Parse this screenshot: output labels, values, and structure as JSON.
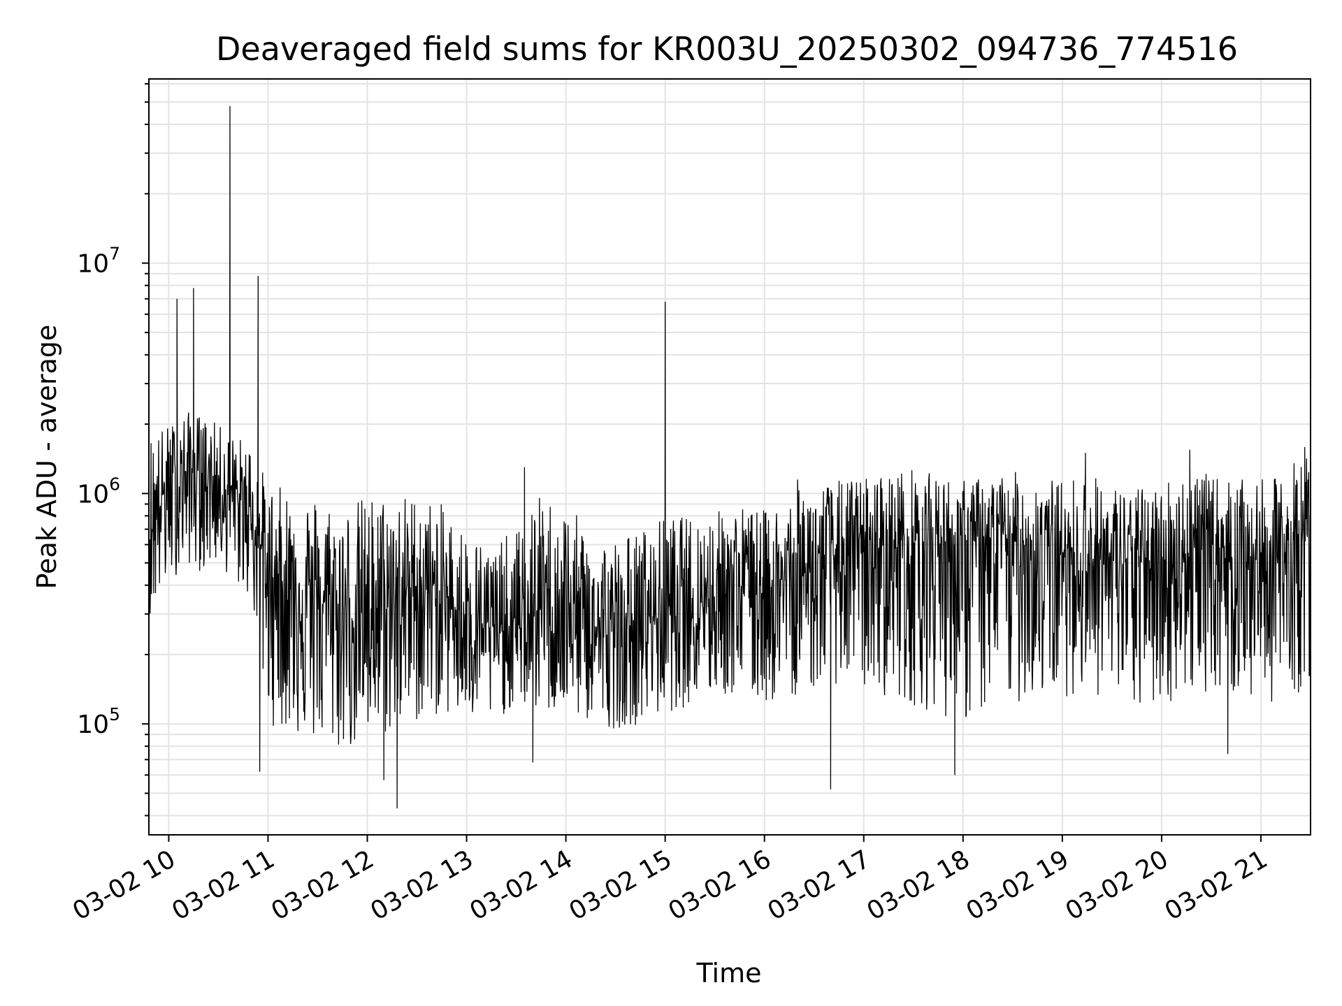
{
  "chart_data": {
    "type": "line",
    "title": "Deaveraged field sums for KR003U_20250302_094736_774516",
    "xlabel": "Time",
    "ylabel": "Peak ADU - average",
    "yscale": "log",
    "xlim": [
      "03-02 09:48",
      "03-02 21:30"
    ],
    "ylim": [
      33000,
      63000000
    ],
    "x_ticks": [
      "03-02 10",
      "03-02 11",
      "03-02 12",
      "03-02 13",
      "03-02 14",
      "03-02 15",
      "03-02 16",
      "03-02 17",
      "03-02 18",
      "03-02 19",
      "03-02 20",
      "03-02 21"
    ],
    "y_ticks": [
      {
        "base": "10",
        "exp": "5",
        "value": 100000
      },
      {
        "base": "10",
        "exp": "6",
        "value": 1000000
      },
      {
        "base": "10",
        "exp": "7",
        "value": 10000000
      }
    ],
    "grid": true,
    "line_color": "#000000",
    "grid_color": "#e3e3e3",
    "series": [
      {
        "x": [
          "03-02 09:50",
          "03-02 10:00",
          "03-02 10:10",
          "03-02 10:20",
          "03-02 10:30",
          "03-02 10:40",
          "03-02 10:50",
          "03-02 11:00",
          "03-02 11:15",
          "03-02 11:30",
          "03-02 11:45",
          "03-02 12:00",
          "03-02 12:15",
          "03-02 12:30",
          "03-02 12:45",
          "03-02 13:00",
          "03-02 13:15",
          "03-02 13:30",
          "03-02 13:45",
          "03-02 14:00",
          "03-02 14:15",
          "03-02 14:30",
          "03-02 14:45",
          "03-02 15:00",
          "03-02 15:15",
          "03-02 15:30",
          "03-02 15:45",
          "03-02 16:00",
          "03-02 16:15",
          "03-02 16:30",
          "03-02 16:45",
          "03-02 17:00",
          "03-02 17:15",
          "03-02 17:30",
          "03-02 17:45",
          "03-02 18:00",
          "03-02 18:15",
          "03-02 18:30",
          "03-02 18:45",
          "03-02 19:00",
          "03-02 19:15",
          "03-02 19:30",
          "03-02 19:45",
          "03-02 20:00",
          "03-02 20:15",
          "03-02 20:30",
          "03-02 20:45",
          "03-02 21:00",
          "03-02 21:15",
          "03-02 21:30"
        ],
        "y": [
          800000,
          1100000,
          1200000,
          1300000,
          1100000,
          950000,
          850000,
          450000,
          400000,
          350000,
          300000,
          300000,
          350000,
          400000,
          350000,
          300000,
          260000,
          250000,
          320000,
          300000,
          260000,
          240000,
          280000,
          320000,
          350000,
          380000,
          420000,
          400000,
          420000,
          500000,
          550000,
          550000,
          600000,
          600000,
          650000,
          600000,
          620000,
          620000,
          600000,
          550000,
          520000,
          500000,
          520000,
          500000,
          550000,
          600000,
          550000,
          500000,
          550000,
          700000
        ],
        "y_low": [
          300000,
          400000,
          500000,
          450000,
          500000,
          400000,
          350000,
          100000,
          90000,
          80000,
          75000,
          80000,
          90000,
          100000,
          110000,
          100000,
          100000,
          120000,
          110000,
          110000,
          100000,
          95000,
          100000,
          110000,
          120000,
          130000,
          130000,
          120000,
          130000,
          140000,
          150000,
          140000,
          130000,
          120000,
          110000,
          100000,
          110000,
          120000,
          130000,
          130000,
          140000,
          120000,
          110000,
          120000,
          130000,
          140000,
          130000,
          120000,
          130000,
          140000
        ],
        "y_high": [
          1900000,
          2000000,
          2300000,
          2200000,
          2000000,
          1800000,
          1700000,
          1100000,
          1050000,
          1000000,
          900000,
          1000000,
          1000000,
          1000000,
          900000,
          700000,
          600000,
          700000,
          1000000,
          900000,
          700000,
          650000,
          700000,
          800000,
          800000,
          850000,
          900000,
          850000,
          1000000,
          1100000,
          1150000,
          1200000,
          1250000,
          1300000,
          1200000,
          1150000,
          1200000,
          1250000,
          1200000,
          1150000,
          1250000,
          1100000,
          1050000,
          1150000,
          1300000,
          1200000,
          1150000,
          1150000,
          1200000,
          1900000
        ]
      }
    ],
    "spikes": [
      {
        "x": "03-02 10:05",
        "y": 7000000
      },
      {
        "x": "03-02 10:15",
        "y": 7800000
      },
      {
        "x": "03-02 10:37",
        "y": 48000000
      },
      {
        "x": "03-02 10:54",
        "y": 8800000
      },
      {
        "x": "03-02 13:35",
        "y": 1300000
      },
      {
        "x": "03-02 15:00",
        "y": 6800000
      },
      {
        "x": "03-02 16:20",
        "y": 1150000
      },
      {
        "x": "03-02 19:14",
        "y": 1500000
      },
      {
        "x": "03-02 20:17",
        "y": 1550000
      }
    ],
    "dips": [
      {
        "x": "03-02 10:55",
        "y": 62000
      },
      {
        "x": "03-02 12:10",
        "y": 57000
      },
      {
        "x": "03-02 12:18",
        "y": 43000
      },
      {
        "x": "03-02 13:40",
        "y": 68000
      },
      {
        "x": "03-02 16:40",
        "y": 52000
      },
      {
        "x": "03-02 17:55",
        "y": 60000
      },
      {
        "x": "03-02 20:40",
        "y": 74000
      }
    ]
  }
}
